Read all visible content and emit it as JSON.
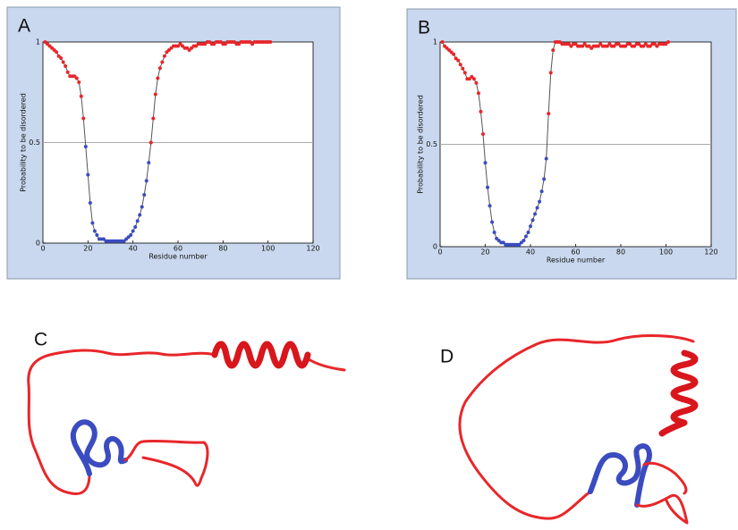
{
  "chart_data": [
    {
      "type": "scatter-line",
      "label": "A",
      "x_label": "Residue number",
      "y_label": "Probability to be disordered",
      "x": [
        1,
        2,
        3,
        4,
        5,
        6,
        7,
        8,
        9,
        10,
        11,
        12,
        13,
        14,
        15,
        16,
        17,
        18,
        19,
        20,
        21,
        22,
        23,
        24,
        25,
        26,
        27,
        28,
        29,
        30,
        31,
        32,
        33,
        34,
        35,
        36,
        37,
        38,
        39,
        40,
        41,
        42,
        43,
        44,
        45,
        46,
        47,
        48,
        49,
        50,
        51,
        52,
        53,
        54,
        55,
        56,
        57,
        58,
        59,
        60,
        61,
        62,
        63,
        64,
        65,
        66,
        67,
        68,
        69,
        70,
        71,
        72,
        73,
        74,
        75,
        76,
        77,
        78,
        79,
        80,
        81,
        82,
        83,
        84,
        85,
        86,
        87,
        88,
        89,
        90,
        91,
        92,
        93,
        94,
        95,
        96,
        97,
        98,
        99,
        100,
        101
      ],
      "values": [
        1.0,
        0.99,
        0.98,
        0.97,
        0.96,
        0.95,
        0.93,
        0.92,
        0.9,
        0.88,
        0.85,
        0.83,
        0.83,
        0.83,
        0.82,
        0.8,
        0.73,
        0.62,
        0.48,
        0.34,
        0.2,
        0.1,
        0.06,
        0.04,
        0.02,
        0.02,
        0.02,
        0.01,
        0.01,
        0.01,
        0.01,
        0.01,
        0.01,
        0.01,
        0.01,
        0.01,
        0.02,
        0.03,
        0.04,
        0.06,
        0.08,
        0.11,
        0.14,
        0.18,
        0.24,
        0.31,
        0.4,
        0.5,
        0.62,
        0.74,
        0.82,
        0.87,
        0.9,
        0.93,
        0.95,
        0.96,
        0.97,
        0.98,
        0.98,
        0.98,
        0.99,
        0.98,
        0.97,
        0.97,
        0.96,
        0.97,
        0.98,
        0.98,
        0.99,
        0.99,
        0.99,
        0.99,
        1.0,
        1.0,
        0.99,
        0.99,
        1.0,
        1.0,
        1.0,
        0.99,
        0.99,
        1.0,
        1.0,
        1.0,
        1.0,
        0.99,
        0.99,
        1.0,
        1.0,
        1.0,
        1.0,
        1.0,
        0.99,
        1.0,
        1.0,
        1.0,
        1.0,
        1.0,
        1.0,
        1.0,
        1.0
      ],
      "xlim": [
        0,
        120
      ],
      "xticks": [
        0,
        20,
        40,
        60,
        80,
        100,
        120
      ],
      "ylim": [
        0,
        1
      ],
      "yticks": [
        0,
        0.5,
        1
      ],
      "threshold": 0.5,
      "colors": {
        "above": "#e8262a",
        "below": "#3b4cc0"
      },
      "line_color": "#555555"
    },
    {
      "type": "scatter-line",
      "label": "B",
      "x_label": "Residue number",
      "y_label": "Probability to be disordered",
      "x": [
        1,
        2,
        3,
        4,
        5,
        6,
        7,
        8,
        9,
        10,
        11,
        12,
        13,
        14,
        15,
        16,
        17,
        18,
        19,
        20,
        21,
        22,
        23,
        24,
        25,
        26,
        27,
        28,
        29,
        30,
        31,
        32,
        33,
        34,
        35,
        36,
        37,
        38,
        39,
        40,
        41,
        42,
        43,
        44,
        45,
        46,
        47,
        48,
        49,
        50,
        51,
        52,
        53,
        54,
        55,
        56,
        57,
        58,
        59,
        60,
        61,
        62,
        63,
        64,
        65,
        66,
        67,
        68,
        69,
        70,
        71,
        72,
        73,
        74,
        75,
        76,
        77,
        78,
        79,
        80,
        81,
        82,
        83,
        84,
        85,
        86,
        87,
        88,
        89,
        90,
        91,
        92,
        93,
        94,
        95,
        96,
        97,
        98,
        99,
        100,
        101
      ],
      "values": [
        1.0,
        0.98,
        0.97,
        0.96,
        0.95,
        0.94,
        0.92,
        0.91,
        0.89,
        0.87,
        0.85,
        0.82,
        0.82,
        0.83,
        0.82,
        0.8,
        0.75,
        0.66,
        0.55,
        0.41,
        0.29,
        0.2,
        0.12,
        0.07,
        0.04,
        0.03,
        0.02,
        0.02,
        0.01,
        0.01,
        0.01,
        0.01,
        0.01,
        0.01,
        0.01,
        0.02,
        0.03,
        0.05,
        0.07,
        0.1,
        0.13,
        0.16,
        0.19,
        0.22,
        0.27,
        0.33,
        0.43,
        0.65,
        0.85,
        0.96,
        1.0,
        1.0,
        1.0,
        0.99,
        0.99,
        0.99,
        0.99,
        0.98,
        0.99,
        0.99,
        0.98,
        0.98,
        0.98,
        0.99,
        0.98,
        0.98,
        0.97,
        0.98,
        0.98,
        0.98,
        0.99,
        0.98,
        0.98,
        0.98,
        0.99,
        0.98,
        0.98,
        0.99,
        0.99,
        0.98,
        0.98,
        0.98,
        0.99,
        0.99,
        0.98,
        0.98,
        0.99,
        0.99,
        0.98,
        0.98,
        0.99,
        0.98,
        0.98,
        0.99,
        0.99,
        0.98,
        0.99,
        0.99,
        0.99,
        0.99,
        1.0
      ],
      "xlim": [
        0,
        120
      ],
      "xticks": [
        0,
        20,
        40,
        60,
        80,
        100,
        120
      ],
      "ylim": [
        0,
        1
      ],
      "yticks": [
        0,
        0.5,
        1
      ],
      "threshold": 0.5,
      "colors": {
        "above": "#e8262a",
        "below": "#3b4cc0"
      },
      "line_color": "#555555"
    }
  ],
  "structures": [
    {
      "label": "C"
    },
    {
      "label": "D"
    }
  ]
}
